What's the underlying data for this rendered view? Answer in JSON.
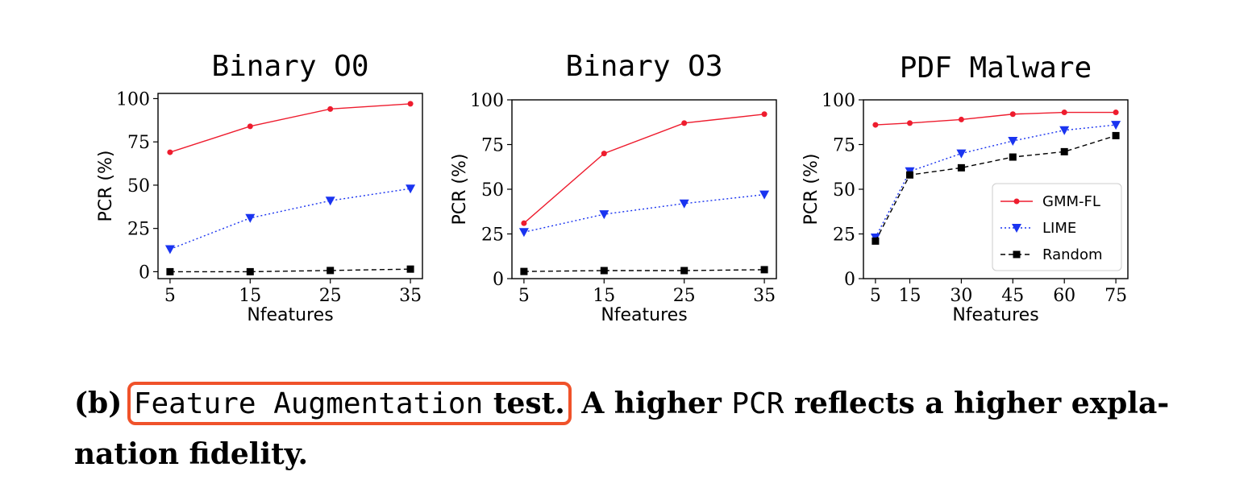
{
  "chart_data": [
    {
      "type": "line",
      "title": "Binary O0",
      "xlabel": "Nfeatures",
      "ylabel": "PCR (%)",
      "x": [
        5,
        15,
        25,
        35
      ],
      "xticks": [
        5,
        15,
        25,
        35
      ],
      "xlim": [
        3.5,
        36.5
      ],
      "yticks": [
        0,
        25,
        50,
        75,
        100
      ],
      "ylim": [
        -4,
        103
      ],
      "series": [
        {
          "name": "GMM-FL",
          "values": [
            69,
            84,
            94,
            97
          ],
          "color": "#ee1c2e",
          "marker": "circle",
          "line": "solid"
        },
        {
          "name": "LIME",
          "values": [
            13,
            31,
            41,
            48
          ],
          "color": "#1a34f0",
          "marker": "triangle-down",
          "line": "dotted"
        },
        {
          "name": "Random",
          "values": [
            0,
            0,
            0.7,
            1.5
          ],
          "color": "#000000",
          "marker": "square",
          "line": "dashed"
        }
      ],
      "legend": false
    },
    {
      "type": "line",
      "title": "Binary O3",
      "xlabel": "Nfeatures",
      "ylabel": "PCR (%)",
      "x": [
        5,
        15,
        25,
        35
      ],
      "xticks": [
        5,
        15,
        25,
        35
      ],
      "xlim": [
        3.5,
        36.5
      ],
      "yticks": [
        0,
        25,
        50,
        75,
        100
      ],
      "ylim": [
        0,
        100
      ],
      "series": [
        {
          "name": "GMM-FL",
          "values": [
            31,
            70,
            87,
            92
          ],
          "color": "#ee1c2e",
          "marker": "circle",
          "line": "solid"
        },
        {
          "name": "LIME",
          "values": [
            26,
            36,
            42,
            47
          ],
          "color": "#1a34f0",
          "marker": "triangle-down",
          "line": "dotted"
        },
        {
          "name": "Random",
          "values": [
            4,
            4.5,
            4.5,
            5
          ],
          "color": "#000000",
          "marker": "square",
          "line": "dashed"
        }
      ],
      "legend": false
    },
    {
      "type": "line",
      "title": "PDF Malware",
      "xlabel": "Nfeatures",
      "ylabel": "PCR (%)",
      "x": [
        5,
        15,
        30,
        45,
        60,
        75
      ],
      "xticks": [
        5,
        15,
        30,
        45,
        60,
        75
      ],
      "xlim": [
        1.5,
        78.5
      ],
      "yticks": [
        0,
        25,
        50,
        75,
        100
      ],
      "ylim": [
        0,
        100
      ],
      "series": [
        {
          "name": "GMM-FL",
          "values": [
            86,
            87,
            89,
            92,
            93,
            93
          ],
          "color": "#ee1c2e",
          "marker": "circle",
          "line": "solid"
        },
        {
          "name": "LIME",
          "values": [
            23,
            60,
            70,
            77,
            83,
            86
          ],
          "color": "#1a34f0",
          "marker": "triangle-down",
          "line": "dotted"
        },
        {
          "name": "Random",
          "values": [
            21,
            58,
            62,
            68,
            71,
            80
          ],
          "color": "#000000",
          "marker": "square",
          "line": "dashed"
        }
      ],
      "legend": true,
      "legend_position": "lower-right"
    }
  ],
  "caption": {
    "prefix": "(b)",
    "test_name": "Feature Augmentation",
    "test_word": "test.",
    "part_a": "A higher",
    "metric": "PCR",
    "part_b": "reflects a higher expla-",
    "line2": "nation fidelity.",
    "highlight_color": "#f0522a"
  }
}
